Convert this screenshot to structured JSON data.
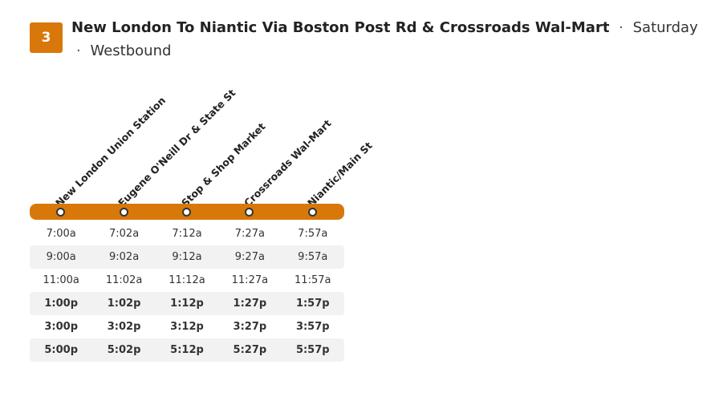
{
  "route": {
    "number": "3",
    "title": "New London To Niantic Via Boston Post Rd & Crossroads Wal-Mart",
    "separator": "·",
    "day": "Saturday",
    "direction": "Westbound"
  },
  "colors": {
    "accent": "#d8780a",
    "row_alt": "#f2f2f2"
  },
  "stops": [
    "New London Union Station",
    "Eugene O'Neill Dr & State St",
    "Stop & Shop Market",
    "Crossroads Wal-Mart",
    "Niantic/Main St"
  ],
  "trips": [
    [
      "7:00a",
      "7:02a",
      "7:12a",
      "7:27a",
      "7:57a"
    ],
    [
      "9:00a",
      "9:02a",
      "9:12a",
      "9:27a",
      "9:57a"
    ],
    [
      "11:00a",
      "11:02a",
      "11:12a",
      "11:27a",
      "11:57a"
    ],
    [
      "1:00p",
      "1:02p",
      "1:12p",
      "1:27p",
      "1:57p"
    ],
    [
      "3:00p",
      "3:02p",
      "3:12p",
      "3:27p",
      "3:57p"
    ],
    [
      "5:00p",
      "5:02p",
      "5:12p",
      "5:27p",
      "5:57p"
    ]
  ]
}
